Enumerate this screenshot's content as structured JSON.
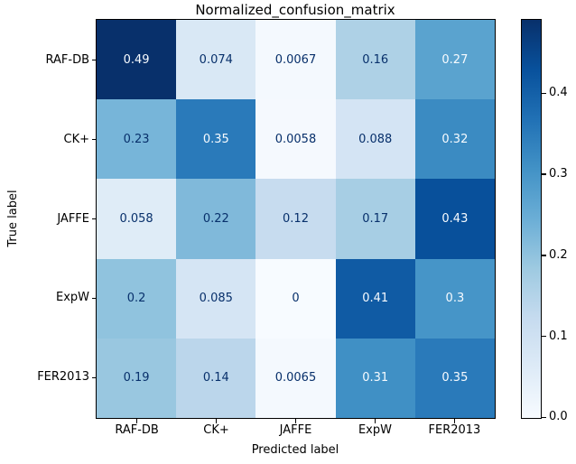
{
  "chart_data": {
    "type": "heatmap",
    "title": "Normalized_confusion_matrix",
    "xlabel": "Predicted label",
    "ylabel": "True label",
    "x_categories": [
      "RAF-DB",
      "CK+",
      "JAFFE",
      "ExpW",
      "FER2013"
    ],
    "y_categories": [
      "RAF-DB",
      "CK+",
      "JAFFE",
      "ExpW",
      "FER2013"
    ],
    "values": [
      [
        0.49,
        0.074,
        0.0067,
        0.16,
        0.27
      ],
      [
        0.23,
        0.35,
        0.0058,
        0.088,
        0.32
      ],
      [
        0.058,
        0.22,
        0.12,
        0.17,
        0.43
      ],
      [
        0.2,
        0.085,
        0,
        0.41,
        0.3
      ],
      [
        0.19,
        0.14,
        0.0065,
        0.31,
        0.35
      ]
    ],
    "cell_labels": [
      [
        "0.49",
        "0.074",
        "0.0067",
        "0.16",
        "0.27"
      ],
      [
        "0.23",
        "0.35",
        "0.0058",
        "0.088",
        "0.32"
      ],
      [
        "0.058",
        "0.22",
        "0.12",
        "0.17",
        "0.43"
      ],
      [
        "0.2",
        "0.085",
        "0",
        "0.41",
        "0.3"
      ],
      [
        "0.19",
        "0.14",
        "0.0065",
        "0.31",
        "0.35"
      ]
    ],
    "vmin": 0,
    "vmax": 0.49,
    "colormap": {
      "name": "Blues",
      "stops": [
        "#f7fbff",
        "#deebf7",
        "#c6dbef",
        "#9ecae1",
        "#6baed6",
        "#4292c6",
        "#2171b5",
        "#08519c",
        "#08306b"
      ]
    },
    "cell_text_color_dark": "#08306b",
    "cell_text_color_light": "#f7fbff",
    "colorbar_ticks": [
      "0.4",
      "0.3",
      "0.2",
      "0.1",
      "0.0"
    ],
    "colorbar_tick_values": [
      0.4,
      0.3,
      0.2,
      0.1,
      0.0
    ],
    "legend_position": "right-colorbar",
    "grid": false
  }
}
